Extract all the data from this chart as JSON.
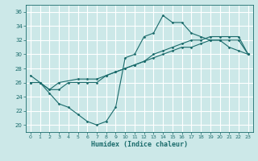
{
  "xlabel": "Humidex (Indice chaleur)",
  "bg_color": "#cce8e8",
  "grid_color": "#ffffff",
  "line_color": "#1a6b6b",
  "xlim": [
    -0.5,
    23.5
  ],
  "ylim": [
    19,
    37
  ],
  "yticks": [
    20,
    22,
    24,
    26,
    28,
    30,
    32,
    34,
    36
  ],
  "xticks": [
    0,
    1,
    2,
    3,
    4,
    5,
    6,
    7,
    8,
    9,
    10,
    11,
    12,
    13,
    14,
    15,
    16,
    17,
    18,
    19,
    20,
    21,
    22,
    23
  ],
  "line1_x": [
    0,
    1,
    2,
    3,
    4,
    5,
    6,
    7,
    8,
    9,
    10,
    11,
    12,
    13,
    14,
    15,
    16,
    17,
    18,
    19,
    20,
    21,
    22,
    23
  ],
  "line1_y": [
    27,
    26,
    24.5,
    23,
    22.5,
    21.5,
    20.5,
    20,
    20.5,
    22.5,
    29.5,
    30,
    32.5,
    33,
    35.5,
    34.5,
    34.5,
    33,
    32.5,
    32,
    32,
    31,
    30.5,
    30
  ],
  "line2_x": [
    0,
    1,
    2,
    3,
    5,
    6,
    7,
    8,
    9,
    10,
    11,
    12,
    13,
    14,
    15,
    16,
    17,
    18,
    19,
    20,
    21,
    22,
    23
  ],
  "line2_y": [
    26,
    26,
    25,
    26,
    26.5,
    26.5,
    26.5,
    27,
    27.5,
    28,
    28.5,
    29,
    30,
    30.5,
    31,
    31.5,
    32,
    32,
    32.5,
    32.5,
    32.5,
    32.5,
    30
  ],
  "line3_x": [
    0,
    1,
    2,
    3,
    4,
    5,
    6,
    7,
    8,
    9,
    10,
    11,
    12,
    13,
    14,
    15,
    16,
    17,
    18,
    19,
    20,
    21,
    22,
    23
  ],
  "line3_y": [
    26,
    26,
    25,
    25,
    26,
    26,
    26,
    26,
    27,
    27.5,
    28,
    28.5,
    29,
    29.5,
    30,
    30.5,
    31,
    31,
    31.5,
    32,
    32,
    32,
    32,
    30
  ]
}
